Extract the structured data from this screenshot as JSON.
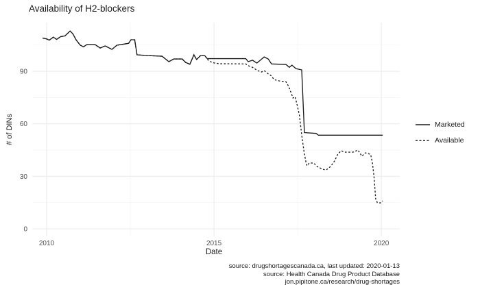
{
  "title": "Availability of H2-blockers",
  "axes": {
    "x_label": "Date",
    "y_label": "# of DINs"
  },
  "legend": {
    "items": [
      {
        "label": "Marketed",
        "style": "solid"
      },
      {
        "label": "Available",
        "style": "dashed"
      }
    ]
  },
  "caption": {
    "line1": "source: drugshortagescanada.ca, last updated: 2020-01-13",
    "line2": "source: Health Canada Drug Product Database",
    "line3": "jon.pipitone.ca/research/drug-shortages"
  },
  "colors": {
    "line": "#1a1a1a",
    "grid_major": "#ebebeb",
    "grid_minor": "#f3f3f3",
    "tick_label": "#4d4d4d",
    "text": "#1a1a1a",
    "background": "#ffffff"
  },
  "chart_data": {
    "type": "line",
    "title": "Availability of H2-blockers",
    "xlabel": "Date",
    "ylabel": "# of DINs",
    "xlim": [
      2009.57,
      2020.55
    ],
    "ylim": [
      -4.3,
      117.8
    ],
    "grid": true,
    "legend_position": "right",
    "x_major_ticks": [
      {
        "value": 2010,
        "label": "2010"
      },
      {
        "value": 2015,
        "label": "2015"
      },
      {
        "value": 2020,
        "label": "2020"
      }
    ],
    "x_minor_ticks": [
      2012.5,
      2017.5
    ],
    "y_major_ticks": [
      {
        "value": 0,
        "label": "0"
      },
      {
        "value": 30,
        "label": "30"
      },
      {
        "value": 60,
        "label": "60"
      },
      {
        "value": 90,
        "label": "90"
      }
    ],
    "y_minor_ticks": [
      15,
      45,
      75,
      105
    ],
    "series": [
      {
        "name": "Marketed",
        "linetype": "solid",
        "points": [
          [
            2009.88,
            109
          ],
          [
            2010.0,
            108.5
          ],
          [
            2010.08,
            107.8
          ],
          [
            2010.2,
            109.5
          ],
          [
            2010.3,
            108.2
          ],
          [
            2010.42,
            109.8
          ],
          [
            2010.55,
            110.2
          ],
          [
            2010.7,
            113
          ],
          [
            2010.78,
            111.5
          ],
          [
            2010.88,
            108
          ],
          [
            2011.0,
            105
          ],
          [
            2011.1,
            104
          ],
          [
            2011.2,
            105.2
          ],
          [
            2011.45,
            105.2
          ],
          [
            2011.6,
            103.3
          ],
          [
            2011.75,
            104.5
          ],
          [
            2011.95,
            102.5
          ],
          [
            2012.1,
            104.9
          ],
          [
            2012.3,
            105.5
          ],
          [
            2012.45,
            106
          ],
          [
            2012.52,
            108
          ],
          [
            2012.63,
            108
          ],
          [
            2012.7,
            99.4
          ],
          [
            2013.0,
            99
          ],
          [
            2013.45,
            98.6
          ],
          [
            2013.65,
            95.5
          ],
          [
            2013.8,
            97
          ],
          [
            2014.05,
            97
          ],
          [
            2014.15,
            95.1
          ],
          [
            2014.28,
            94
          ],
          [
            2014.4,
            99.4
          ],
          [
            2014.48,
            96.7
          ],
          [
            2014.6,
            99
          ],
          [
            2014.72,
            99
          ],
          [
            2014.8,
            97.2
          ],
          [
            2015.95,
            97.2
          ],
          [
            2016.02,
            95.5
          ],
          [
            2016.15,
            96.3
          ],
          [
            2016.28,
            94.7
          ],
          [
            2016.5,
            98.2
          ],
          [
            2016.62,
            97
          ],
          [
            2016.72,
            94.2
          ],
          [
            2017.15,
            93.9
          ],
          [
            2017.25,
            92.3
          ],
          [
            2017.33,
            93.5
          ],
          [
            2017.45,
            91.5
          ],
          [
            2017.62,
            90.8
          ],
          [
            2017.7,
            55
          ],
          [
            2018.05,
            54.5
          ],
          [
            2018.12,
            53.5
          ],
          [
            2020.04,
            53.5
          ]
        ]
      },
      {
        "name": "Available",
        "linetype": "dashed",
        "points": [
          [
            2009.88,
            109
          ],
          [
            2010.0,
            108.5
          ],
          [
            2010.08,
            107.8
          ],
          [
            2010.2,
            109.5
          ],
          [
            2010.3,
            108.2
          ],
          [
            2010.42,
            109.8
          ],
          [
            2010.55,
            110.2
          ],
          [
            2010.7,
            113
          ],
          [
            2010.78,
            111.5
          ],
          [
            2010.88,
            108
          ],
          [
            2011.0,
            105
          ],
          [
            2011.1,
            104
          ],
          [
            2011.2,
            105.2
          ],
          [
            2011.45,
            105.2
          ],
          [
            2011.6,
            103.3
          ],
          [
            2011.75,
            104.5
          ],
          [
            2011.95,
            102.5
          ],
          [
            2012.1,
            104.9
          ],
          [
            2012.3,
            105.5
          ],
          [
            2012.45,
            106
          ],
          [
            2012.52,
            108
          ],
          [
            2012.63,
            108
          ],
          [
            2012.7,
            99.4
          ],
          [
            2013.0,
            99
          ],
          [
            2013.45,
            98.6
          ],
          [
            2013.65,
            95.5
          ],
          [
            2013.8,
            97
          ],
          [
            2014.05,
            97
          ],
          [
            2014.15,
            95.1
          ],
          [
            2014.28,
            94
          ],
          [
            2014.4,
            99.4
          ],
          [
            2014.48,
            96.7
          ],
          [
            2014.6,
            99
          ],
          [
            2014.72,
            99
          ],
          [
            2014.8,
            97.2
          ],
          [
            2014.85,
            95.8
          ],
          [
            2015.0,
            94.8
          ],
          [
            2015.15,
            94.3
          ],
          [
            2015.95,
            94.2
          ],
          [
            2016.05,
            93
          ],
          [
            2016.15,
            92.3
          ],
          [
            2016.3,
            90.4
          ],
          [
            2016.42,
            89.6
          ],
          [
            2016.5,
            90.4
          ],
          [
            2016.6,
            88.8
          ],
          [
            2016.7,
            87.6
          ],
          [
            2016.8,
            85.2
          ],
          [
            2016.95,
            84.5
          ],
          [
            2017.15,
            84
          ],
          [
            2017.22,
            81.8
          ],
          [
            2017.3,
            78
          ],
          [
            2017.36,
            74.7
          ],
          [
            2017.42,
            75.5
          ],
          [
            2017.48,
            71.2
          ],
          [
            2017.55,
            65
          ],
          [
            2017.63,
            52
          ],
          [
            2017.7,
            42.7
          ],
          [
            2017.75,
            38
          ],
          [
            2017.78,
            36
          ],
          [
            2017.85,
            37.6
          ],
          [
            2017.98,
            37.6
          ],
          [
            2018.08,
            35.6
          ],
          [
            2018.25,
            34
          ],
          [
            2018.35,
            33.6
          ],
          [
            2018.48,
            35.6
          ],
          [
            2018.6,
            38.7
          ],
          [
            2018.7,
            42.7
          ],
          [
            2018.8,
            44.6
          ],
          [
            2018.9,
            43.8
          ],
          [
            2019.15,
            43.8
          ],
          [
            2019.3,
            45
          ],
          [
            2019.42,
            41.5
          ],
          [
            2019.52,
            43.4
          ],
          [
            2019.6,
            43
          ],
          [
            2019.68,
            42.5
          ],
          [
            2019.73,
            38
          ],
          [
            2019.78,
            30
          ],
          [
            2019.83,
            17
          ],
          [
            2019.88,
            15
          ],
          [
            2019.97,
            14.8
          ],
          [
            2020.04,
            16
          ]
        ]
      }
    ]
  }
}
